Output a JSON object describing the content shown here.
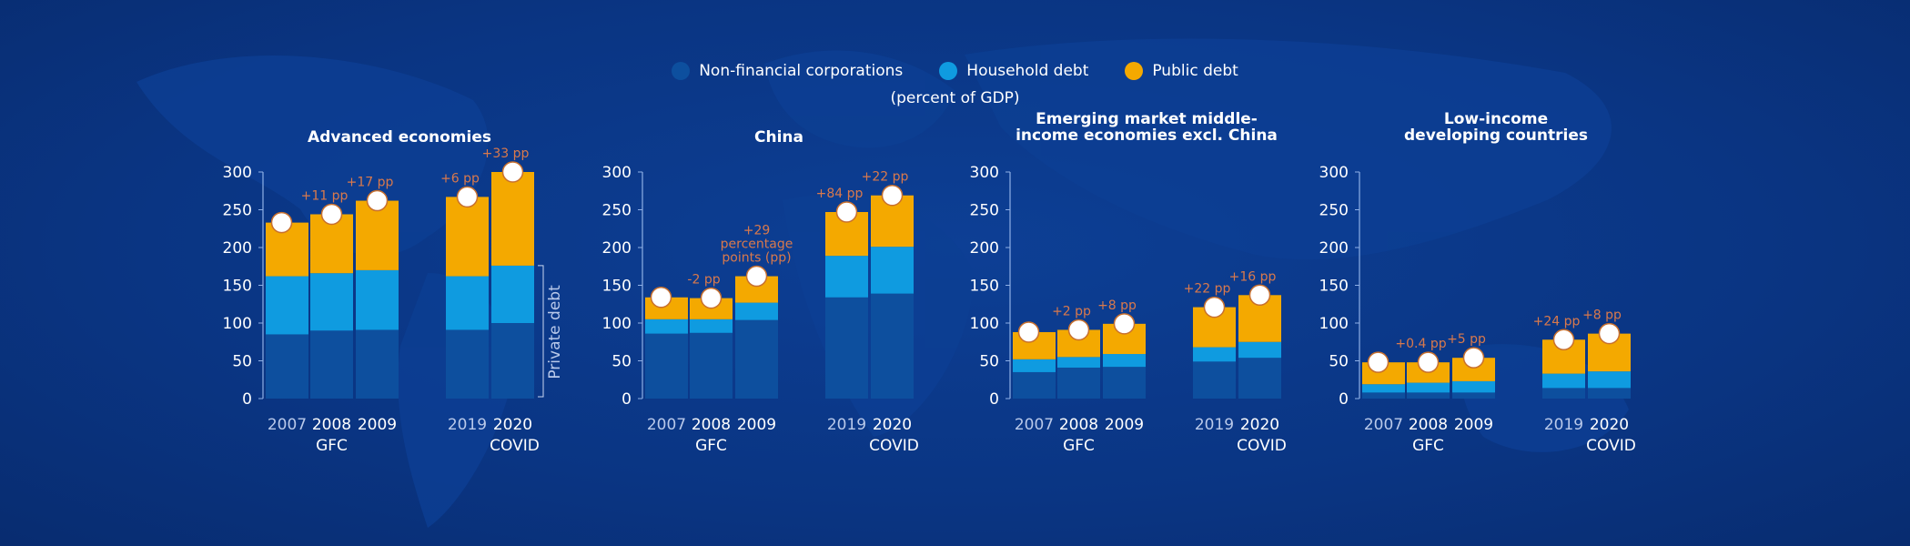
{
  "legend": {
    "items": [
      {
        "label": "Non-financial corporations",
        "color": "#0d4f9e"
      },
      {
        "label": "Household debt",
        "color": "#0f9be0"
      },
      {
        "label": "Public debt",
        "color": "#f4a900"
      }
    ],
    "unit": "(percent of GDP)"
  },
  "chart_data": [
    {
      "type": "bar",
      "stacked": true,
      "title": [
        "Advanced economies"
      ],
      "categories": [
        "2007",
        "2008",
        "2009",
        "2019",
        "2020"
      ],
      "group_labels": {
        "2008": "GFC",
        "2020": "COVID"
      },
      "ylim": [
        0,
        300
      ],
      "yticks": [
        0,
        50,
        100,
        150,
        200,
        250,
        300
      ],
      "series": [
        {
          "name": "Non-financial corporations",
          "values": [
            85,
            90,
            91,
            91,
            100
          ]
        },
        {
          "name": "Household debt",
          "values": [
            77,
            76,
            79,
            71,
            76
          ]
        },
        {
          "name": "Public debt",
          "values": [
            71,
            78,
            92,
            105,
            124
          ]
        }
      ],
      "totals": [
        233,
        244,
        262,
        267,
        300
      ],
      "annotations": [
        "",
        "+11 pp",
        "+17 pp",
        "+6 pp",
        "+33 pp"
      ],
      "bracket_label": "Private debt"
    },
    {
      "type": "bar",
      "stacked": true,
      "title": [
        "China"
      ],
      "categories": [
        "2007",
        "2008",
        "2009",
        "2019",
        "2020"
      ],
      "group_labels": {
        "2008": "GFC",
        "2020": "COVID"
      },
      "ylim": [
        0,
        300
      ],
      "yticks": [
        0,
        50,
        100,
        150,
        200,
        250,
        300
      ],
      "series": [
        {
          "name": "Non-financial corporations",
          "values": [
            86,
            87,
            104,
            134,
            139
          ]
        },
        {
          "name": "Household debt",
          "values": [
            19,
            18,
            23,
            55,
            62
          ]
        },
        {
          "name": "Public debt",
          "values": [
            29,
            28,
            35,
            58,
            68
          ]
        }
      ],
      "totals": [
        134,
        133,
        162,
        247,
        269
      ],
      "annotations": [
        "",
        "-2 pp",
        "+29|percentage|points (pp)",
        "+84 pp",
        "+22 pp"
      ]
    },
    {
      "type": "bar",
      "stacked": true,
      "title": [
        "Emerging market middle-",
        "income economies excl. China"
      ],
      "categories": [
        "2007",
        "2008",
        "2009",
        "2019",
        "2020"
      ],
      "group_labels": {
        "2008": "GFC",
        "2020": "COVID"
      },
      "ylim": [
        0,
        300
      ],
      "yticks": [
        0,
        50,
        100,
        150,
        200,
        250,
        300
      ],
      "series": [
        {
          "name": "Non-financial corporations",
          "values": [
            35,
            41,
            42,
            49,
            54
          ]
        },
        {
          "name": "Household debt",
          "values": [
            17,
            14,
            17,
            19,
            21
          ]
        },
        {
          "name": "Public debt",
          "values": [
            36,
            36,
            40,
            53,
            62
          ]
        }
      ],
      "totals": [
        88,
        91,
        99,
        121,
        137
      ],
      "annotations": [
        "",
        "+2 pp",
        "+8 pp",
        "+22 pp",
        "+16 pp"
      ]
    },
    {
      "type": "bar",
      "stacked": true,
      "title": [
        "Low-income",
        "developing countries"
      ],
      "categories": [
        "2007",
        "2008",
        "2009",
        "2019",
        "2020"
      ],
      "group_labels": {
        "2008": "GFC",
        "2020": "COVID"
      },
      "ylim": [
        0,
        300
      ],
      "yticks": [
        0,
        50,
        100,
        150,
        200,
        250,
        300
      ],
      "series": [
        {
          "name": "Non-financial corporations",
          "values": [
            8,
            8,
            8,
            14,
            14
          ]
        },
        {
          "name": "Household debt",
          "values": [
            11,
            13,
            15,
            19,
            22
          ]
        },
        {
          "name": "Public debt",
          "values": [
            29,
            27,
            31,
            45,
            50
          ]
        }
      ],
      "totals": [
        48,
        48,
        54,
        78,
        86
      ],
      "annotations": [
        "",
        "+0.4 pp",
        "+5 pp",
        "+24 pp",
        "+8 pp"
      ]
    }
  ],
  "colors": {
    "annotation": "#d9794c",
    "marker_fill": "#ffffff",
    "marker_stroke": "#c8702e",
    "axis": "#8fb0e6"
  }
}
